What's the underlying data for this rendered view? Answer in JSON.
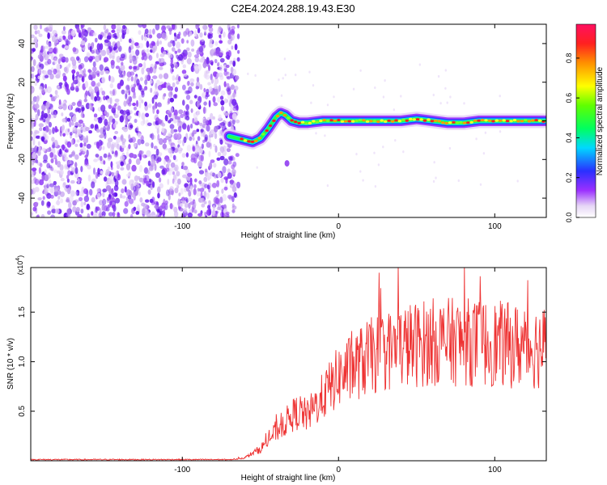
{
  "title": "C2E4.2024.288.19.43.E30",
  "chart_data": [
    {
      "type": "heatmap",
      "xlabel": "Height of straight line (km)",
      "ylabel": "Frequency (Hz)",
      "xlim": [
        -197,
        133
      ],
      "ylim": [
        -50,
        50
      ],
      "xticks": [
        -100,
        0,
        100
      ],
      "yticks": [
        -40,
        -20,
        0,
        20,
        40
      ],
      "noise_region_x": [
        -197,
        -68
      ],
      "ridge": {
        "x": [
          -70,
          -65,
          -60,
          -55,
          -50,
          -45,
          -40,
          -37,
          -34,
          -30,
          -25,
          -20,
          -10,
          0,
          10,
          20,
          30,
          40,
          50,
          60,
          70,
          80,
          90,
          100,
          110,
          120,
          133
        ],
        "y": [
          -8,
          -9,
          -10,
          -11,
          -9,
          -4,
          2,
          4,
          3,
          0,
          -1,
          -1,
          0,
          0,
          0,
          0,
          0,
          0,
          1,
          0,
          -1,
          -1,
          0,
          0,
          0,
          0,
          0
        ]
      },
      "colorbar": {
        "label": "Normalized spectral amplitude",
        "ticks": [
          "0.0",
          "0.2",
          "0.4",
          "0.6",
          "0.8"
        ],
        "range": [
          0,
          0.97
        ]
      }
    },
    {
      "type": "line",
      "xlabel": "Height of straight line (km)",
      "ylabel": "SNR (10 * v/v)",
      "scale_label": "(x10",
      "scale_exp": "4",
      "xlim": [
        -197,
        133
      ],
      "ylim": [
        0,
        1.95
      ],
      "xticks": [
        -100,
        0,
        100
      ],
      "yticks": [
        "0.5",
        "1.0",
        "1.5"
      ],
      "series": [
        {
          "color": "#ee3333",
          "envelope": {
            "x": [
              -197,
              -70,
              -60,
              -50,
              -40,
              -30,
              -25,
              -20,
              -10,
              0,
              10,
              20,
              30,
              40,
              60,
              80,
              100,
              120,
              133
            ],
            "y": [
              0.01,
              0.01,
              0.03,
              0.12,
              0.3,
              0.45,
              0.5,
              0.45,
              0.65,
              0.85,
              0.95,
              1.05,
              1.1,
              1.15,
              1.2,
              1.2,
              1.18,
              1.15,
              1.15
            ]
          }
        }
      ]
    }
  ]
}
